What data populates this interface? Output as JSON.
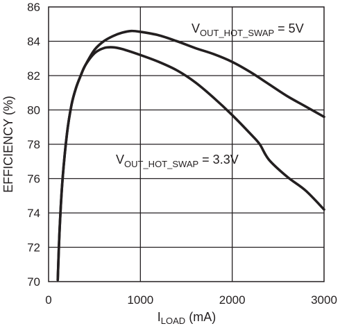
{
  "chart_data": {
    "type": "line",
    "xlabel": {
      "main": "I",
      "sub": "LOAD",
      "unit": " (mA)"
    },
    "ylabel": "EFFICIENCY (%)",
    "xlim": [
      0,
      3000
    ],
    "ylim": [
      70,
      86
    ],
    "xticks": [
      0,
      1000,
      2000,
      3000
    ],
    "yticks": [
      70,
      72,
      74,
      76,
      78,
      80,
      82,
      84,
      86
    ],
    "x_tick_labels": [
      "0",
      "1000",
      "2000",
      "3000"
    ],
    "y_tick_labels": [
      "70",
      "72",
      "74",
      "76",
      "78",
      "80",
      "82",
      "84",
      "86"
    ],
    "grid": true,
    "legend": "none",
    "series": [
      {
        "name": {
          "main": "V",
          "sub": "OUT_HOT_SWAP",
          "value": " = 5V"
        },
        "x": [
          100,
          120,
          150,
          200,
          250,
          300,
          350,
          400,
          500,
          600,
          700,
          800,
          900,
          1000,
          1200,
          1400,
          1600,
          1800,
          2000,
          2200,
          2400,
          2600,
          2800,
          3000
        ],
        "y": [
          70.1,
          73.0,
          75.8,
          78.6,
          80.3,
          81.3,
          82.0,
          82.6,
          83.5,
          84.0,
          84.3,
          84.5,
          84.6,
          84.55,
          84.35,
          84.0,
          83.6,
          83.25,
          82.8,
          82.2,
          81.5,
          80.8,
          80.2,
          79.6
        ]
      },
      {
        "name": {
          "main": "V",
          "sub": "OUT_HOT_SWAP",
          "value": " = 3.3V"
        },
        "x": [
          100,
          120,
          150,
          200,
          250,
          300,
          350,
          400,
          500,
          600,
          700,
          800,
          1000,
          1200,
          1400,
          1600,
          1800,
          2000,
          2200,
          2300,
          2400,
          2600,
          2800,
          3000
        ],
        "y": [
          70.1,
          73.0,
          75.8,
          78.6,
          80.3,
          81.3,
          82.0,
          82.6,
          83.3,
          83.6,
          83.65,
          83.55,
          83.2,
          82.8,
          82.3,
          81.6,
          80.7,
          79.7,
          78.6,
          78.0,
          77.1,
          76.1,
          75.3,
          74.2
        ]
      }
    ]
  }
}
